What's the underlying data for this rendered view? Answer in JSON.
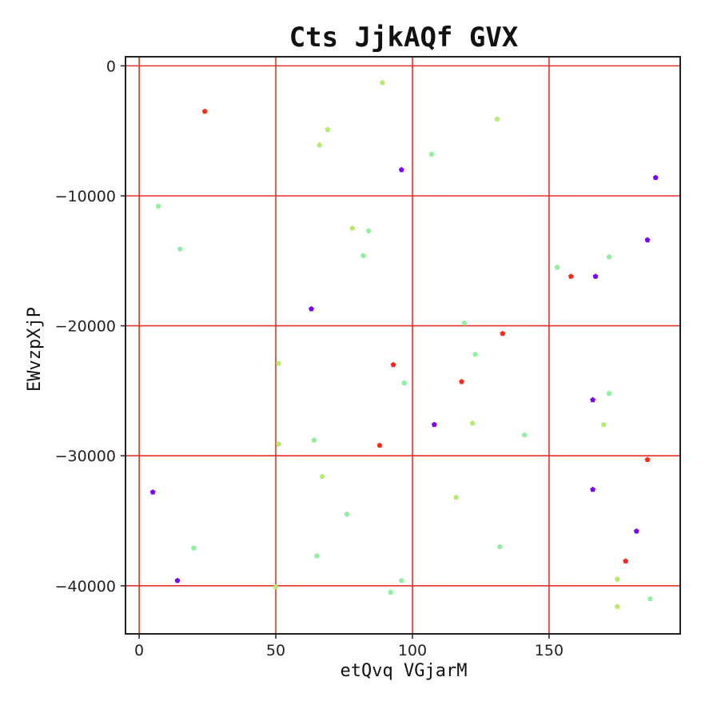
{
  "chart_data": {
    "type": "scatter",
    "title": "Cts JjkAQf GVX",
    "xlabel": "etQvq VGjarM",
    "ylabel": "EWvzpXjP",
    "xlim": [
      -5,
      198
    ],
    "ylim": [
      -43700,
      700
    ],
    "xticks": [
      0,
      50,
      100,
      150
    ],
    "yticks": [
      0,
      -10000,
      -20000,
      -30000,
      -40000
    ],
    "xtick_labels": [
      "0",
      "50",
      "100",
      "150"
    ],
    "ytick_labels": [
      "0",
      "−10000",
      "−20000",
      "−30000",
      "−40000"
    ],
    "grid": true,
    "grid_color": "#e8302a",
    "colors": {
      "red": "#ff2a1a",
      "purple": "#7a00ff",
      "lime": "#b8ea70",
      "mint": "#8ef0a0"
    },
    "points": [
      {
        "x": 24,
        "y": -3500,
        "c": "red"
      },
      {
        "x": 93,
        "y": -23000,
        "c": "red"
      },
      {
        "x": 88,
        "y": -29200,
        "c": "red"
      },
      {
        "x": 118,
        "y": -24300,
        "c": "red"
      },
      {
        "x": 133,
        "y": -20600,
        "c": "red"
      },
      {
        "x": 158,
        "y": -16200,
        "c": "red"
      },
      {
        "x": 186,
        "y": -30300,
        "c": "red"
      },
      {
        "x": 178,
        "y": -38100,
        "c": "red"
      },
      {
        "x": 96,
        "y": -8000,
        "c": "purple"
      },
      {
        "x": 63,
        "y": -18700,
        "c": "purple"
      },
      {
        "x": 108,
        "y": -27600,
        "c": "purple"
      },
      {
        "x": 5,
        "y": -32800,
        "c": "purple"
      },
      {
        "x": 14,
        "y": -39600,
        "c": "purple"
      },
      {
        "x": 167,
        "y": -16200,
        "c": "purple"
      },
      {
        "x": 166,
        "y": -25700,
        "c": "purple"
      },
      {
        "x": 166,
        "y": -32600,
        "c": "purple"
      },
      {
        "x": 182,
        "y": -35800,
        "c": "purple"
      },
      {
        "x": 186,
        "y": -13400,
        "c": "purple"
      },
      {
        "x": 189,
        "y": -8600,
        "c": "purple"
      },
      {
        "x": 89,
        "y": -1300,
        "c": "lime"
      },
      {
        "x": 69,
        "y": -4900,
        "c": "lime"
      },
      {
        "x": 66,
        "y": -6100,
        "c": "lime"
      },
      {
        "x": 131,
        "y": -4100,
        "c": "lime"
      },
      {
        "x": 78,
        "y": -12500,
        "c": "lime"
      },
      {
        "x": 51,
        "y": -22900,
        "c": "lime"
      },
      {
        "x": 51,
        "y": -29100,
        "c": "lime"
      },
      {
        "x": 67,
        "y": -31600,
        "c": "lime"
      },
      {
        "x": 50,
        "y": -40100,
        "c": "lime"
      },
      {
        "x": 122,
        "y": -27500,
        "c": "lime"
      },
      {
        "x": 116,
        "y": -33200,
        "c": "lime"
      },
      {
        "x": 170,
        "y": -27600,
        "c": "lime"
      },
      {
        "x": 175,
        "y": -39500,
        "c": "lime"
      },
      {
        "x": 175,
        "y": -41600,
        "c": "lime"
      },
      {
        "x": 7,
        "y": -10800,
        "c": "mint"
      },
      {
        "x": 15,
        "y": -14100,
        "c": "mint"
      },
      {
        "x": 20,
        "y": -37100,
        "c": "mint"
      },
      {
        "x": 84,
        "y": -12700,
        "c": "mint"
      },
      {
        "x": 82,
        "y": -14600,
        "c": "mint"
      },
      {
        "x": 64,
        "y": -28800,
        "c": "mint"
      },
      {
        "x": 65,
        "y": -37700,
        "c": "mint"
      },
      {
        "x": 76,
        "y": -34500,
        "c": "mint"
      },
      {
        "x": 92,
        "y": -40500,
        "c": "mint"
      },
      {
        "x": 96,
        "y": -39600,
        "c": "mint"
      },
      {
        "x": 97,
        "y": -24400,
        "c": "mint"
      },
      {
        "x": 107,
        "y": -6800,
        "c": "mint"
      },
      {
        "x": 119,
        "y": -19800,
        "c": "mint"
      },
      {
        "x": 123,
        "y": -22200,
        "c": "mint"
      },
      {
        "x": 132,
        "y": -37000,
        "c": "mint"
      },
      {
        "x": 141,
        "y": -28400,
        "c": "mint"
      },
      {
        "x": 153,
        "y": -15500,
        "c": "mint"
      },
      {
        "x": 172,
        "y": -14700,
        "c": "mint"
      },
      {
        "x": 172,
        "y": -25200,
        "c": "mint"
      },
      {
        "x": 187,
        "y": -41000,
        "c": "mint"
      }
    ]
  }
}
